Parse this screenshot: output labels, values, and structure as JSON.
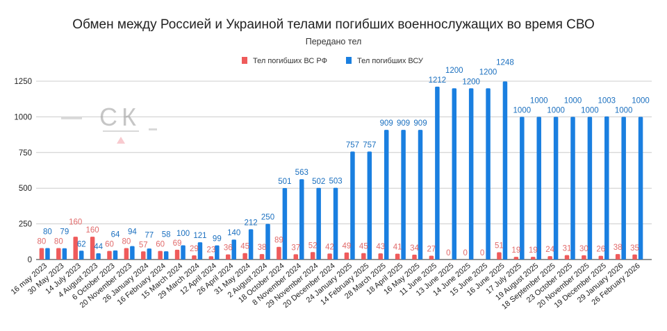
{
  "chart_data": {
    "type": "bar",
    "title": "Обмен между Россией и Украиной телами погибших военнослужащих во время СВО",
    "subtitle": "Передано тел",
    "legend_position": "top",
    "grid": true,
    "ylim": [
      0,
      1250
    ],
    "yticks": [
      0,
      250,
      500,
      750,
      1000,
      1250
    ],
    "categories": [
      "16 may 2023",
      "30 May 2023",
      "14 July 2023",
      "4 August 2023",
      "6 October 2023",
      "20 November 2023",
      "26 January 2024",
      "16 February 2024",
      "15 March 2024",
      "29 March 2024",
      "12 April 2024",
      "26 April 2024",
      "31 May 2024",
      "2 August 2024",
      "18 October 2024",
      "8 November 2024",
      "29 November 2024",
      "20 December 2024",
      "24 January 2025",
      "14 February 2025",
      "28 March 2025",
      "18 April 2025",
      "16 May 2025",
      "11 June 2025",
      "13 June 2025",
      "14 June 2025",
      "15 June 2025",
      "16 June 2025",
      "17 July 2025",
      "19 August 2025",
      "18 September 2025",
      "23 October 2025",
      "20 November 2025",
      "19 December 2025",
      "29 January 2026",
      "26 February 2026"
    ],
    "series": [
      {
        "name": "Тел погибших ВС  РФ",
        "color": "#ef5b5b",
        "values": [
          80,
          80,
          160,
          160,
          60,
          80,
          57,
          60,
          69,
          29,
          23,
          36,
          45,
          38,
          89,
          37,
          52,
          42,
          49,
          45,
          43,
          41,
          34,
          27,
          0,
          0,
          0,
          51,
          19,
          19,
          24,
          31,
          30,
          26,
          38,
          35
        ]
      },
      {
        "name": "Тел погибших ВСУ",
        "color": "#1a7fe0",
        "values": [
          80,
          79,
          62,
          44,
          64,
          94,
          77,
          58,
          100,
          121,
          99,
          140,
          212,
          250,
          501,
          563,
          502,
          503,
          757,
          757,
          909,
          909,
          909,
          1212,
          1200,
          1200,
          1200,
          1248,
          1000,
          1000,
          1000,
          1000,
          1000,
          1003,
          1000,
          1000
        ]
      }
    ]
  },
  "watermark": {
    "text": "СК"
  }
}
